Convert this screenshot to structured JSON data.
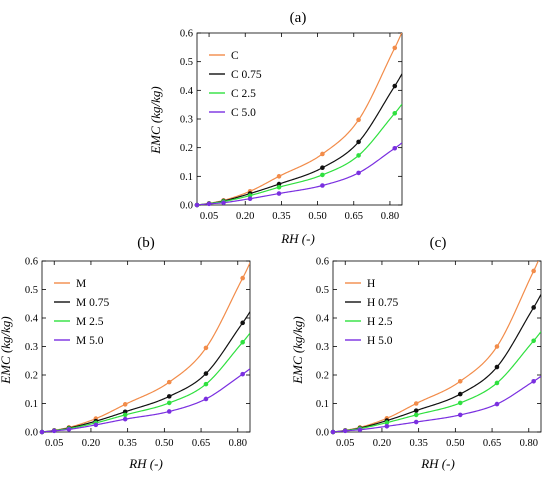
{
  "colors": {
    "C": "#f28c4a",
    "C0.75": "#111111",
    "C2.5": "#2fe03f",
    "C5.0": "#7a2fe0"
  },
  "chart_data": [
    {
      "type": "scatter",
      "panel_label": "(a)",
      "xlabel": "RH (-)",
      "ylabel": "EMC (kg/kg)",
      "xlim": [
        0,
        0.85
      ],
      "ylim": [
        0,
        0.6
      ],
      "xticks": [
        "0.05",
        "0.20",
        "0.35",
        "0.50",
        "0.65",
        "0.80"
      ],
      "xtick_values": [
        0.05,
        0.2,
        0.35,
        0.5,
        0.65,
        0.8
      ],
      "yticks": [
        "0.0",
        "0.1",
        "0.2",
        "0.3",
        "0.4",
        "0.5",
        "0.6"
      ],
      "ytick_values": [
        0,
        0.1,
        0.2,
        0.3,
        0.4,
        0.5,
        0.6
      ],
      "legend_position": "top-left",
      "x": [
        0.0,
        0.05,
        0.11,
        0.22,
        0.34,
        0.52,
        0.67,
        0.82
      ],
      "series": [
        {
          "name": "C",
          "color_key": "C",
          "values": [
            0.0,
            0.006,
            0.016,
            0.048,
            0.1,
            0.178,
            0.297,
            0.548
          ]
        },
        {
          "name": "C 0.75",
          "color_key": "C0.75",
          "values": [
            0.0,
            0.005,
            0.014,
            0.04,
            0.073,
            0.13,
            0.22,
            0.415
          ]
        },
        {
          "name": "C 2.5",
          "color_key": "C2.5",
          "values": [
            0.0,
            0.005,
            0.012,
            0.033,
            0.062,
            0.105,
            0.173,
            0.32
          ]
        },
        {
          "name": "C 5.0",
          "color_key": "C5.0",
          "values": [
            0.0,
            0.004,
            0.008,
            0.022,
            0.04,
            0.068,
            0.112,
            0.198
          ]
        }
      ]
    },
    {
      "type": "scatter",
      "panel_label": "(b)",
      "xlabel": "RH (-)",
      "ylabel": "EMC (kg/kg)",
      "xlim": [
        0,
        0.85
      ],
      "ylim": [
        0,
        0.6
      ],
      "xticks": [
        "0.05",
        "0.20",
        "0.35",
        "0.50",
        "0.65",
        "0.80"
      ],
      "xtick_values": [
        0.05,
        0.2,
        0.35,
        0.5,
        0.65,
        0.8
      ],
      "yticks": [
        "0.0",
        "0.1",
        "0.2",
        "0.3",
        "0.4",
        "0.5",
        "0.6"
      ],
      "ytick_values": [
        0,
        0.1,
        0.2,
        0.3,
        0.4,
        0.5,
        0.6
      ],
      "legend_position": "top-left",
      "x": [
        0.0,
        0.05,
        0.11,
        0.22,
        0.34,
        0.52,
        0.67,
        0.82
      ],
      "series": [
        {
          "name": "M",
          "color_key": "C",
          "values": [
            0.0,
            0.006,
            0.016,
            0.047,
            0.097,
            0.175,
            0.295,
            0.54
          ]
        },
        {
          "name": "M 0.75",
          "color_key": "C0.75",
          "values": [
            0.0,
            0.005,
            0.014,
            0.038,
            0.071,
            0.125,
            0.205,
            0.383
          ]
        },
        {
          "name": "M 2.5",
          "color_key": "C2.5",
          "values": [
            0.0,
            0.005,
            0.012,
            0.032,
            0.06,
            0.102,
            0.168,
            0.315
          ]
        },
        {
          "name": "M 5.0",
          "color_key": "C5.0",
          "values": [
            0.0,
            0.004,
            0.009,
            0.025,
            0.045,
            0.072,
            0.116,
            0.203
          ]
        }
      ]
    },
    {
      "type": "scatter",
      "panel_label": "(c)",
      "xlabel": "RH (-)",
      "ylabel": "EMC (kg/kg)",
      "xlim": [
        0,
        0.85
      ],
      "ylim": [
        0,
        0.6
      ],
      "xticks": [
        "0.05",
        "0.20",
        "0.35",
        "0.50",
        "0.65",
        "0.80"
      ],
      "xtick_values": [
        0.05,
        0.2,
        0.35,
        0.5,
        0.65,
        0.8
      ],
      "yticks": [
        "0.0",
        "0.1",
        "0.2",
        "0.3",
        "0.4",
        "0.5",
        "0.6"
      ],
      "ytick_values": [
        0,
        0.1,
        0.2,
        0.3,
        0.4,
        0.5,
        0.6
      ],
      "legend_position": "top-left",
      "x": [
        0.0,
        0.05,
        0.11,
        0.22,
        0.34,
        0.52,
        0.67,
        0.82
      ],
      "series": [
        {
          "name": "H",
          "color_key": "C",
          "values": [
            0.0,
            0.006,
            0.016,
            0.048,
            0.1,
            0.178,
            0.3,
            0.565
          ]
        },
        {
          "name": "H 0.75",
          "color_key": "C0.75",
          "values": [
            0.0,
            0.005,
            0.014,
            0.04,
            0.075,
            0.133,
            0.228,
            0.437
          ]
        },
        {
          "name": "H 2.5",
          "color_key": "C2.5",
          "values": [
            0.0,
            0.005,
            0.012,
            0.033,
            0.06,
            0.102,
            0.172,
            0.32
          ]
        },
        {
          "name": "H 5.0",
          "color_key": "C5.0",
          "values": [
            0.0,
            0.004,
            0.008,
            0.02,
            0.035,
            0.06,
            0.098,
            0.178
          ]
        }
      ]
    }
  ]
}
